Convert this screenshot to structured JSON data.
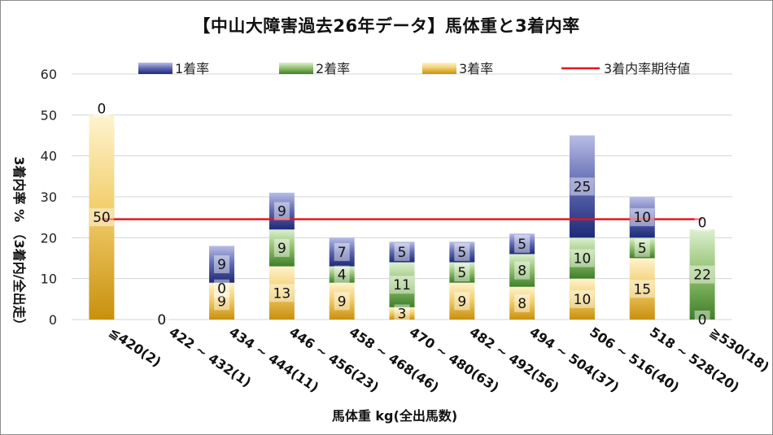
{
  "chart_data": {
    "type": "bar",
    "stacked": true,
    "title": "【中山大障害過去26年データ】馬体重と3着内率",
    "xlabel": "馬体重 kg(全出馬数)",
    "ylabel": "3着内率 %  （3着内/全出走）",
    "ylim": [
      0,
      60
    ],
    "yticks": [
      0,
      10,
      20,
      30,
      40,
      50,
      60
    ],
    "grid": true,
    "legend_position": "top",
    "categories": [
      "≦420(2)",
      "422 ~ 432(1)",
      "434 ~ 444(11)",
      "446 ~ 456(23)",
      "458 ~ 468(46)",
      "470 ~ 480(63)",
      "482 ~ 492(56)",
      "494 ~ 504(37)",
      "506 ~ 516(40)",
      "518 ~ 528(20)",
      "≧530(18)"
    ],
    "series": [
      {
        "name": "3着率",
        "color": "#d9a520",
        "values": [
          50,
          0,
          9,
          13,
          9,
          3,
          9,
          8,
          10,
          15,
          0
        ]
      },
      {
        "name": "2着率",
        "color": "#5b9a3c",
        "values": [
          0,
          0,
          0,
          9,
          4,
          11,
          5,
          8,
          10,
          5,
          22
        ]
      },
      {
        "name": "1着率",
        "color": "#2e3a8c",
        "values": [
          0,
          0,
          9,
          9,
          7,
          5,
          5,
          5,
          25,
          10,
          0
        ]
      }
    ],
    "data_labels": [
      [
        "50",
        "",
        "9",
        "13",
        "9",
        "3",
        "9",
        "8",
        "10",
        "15",
        "0"
      ],
      [
        "",
        "",
        "0",
        "9",
        "4",
        "11",
        "5",
        "8",
        "10",
        "5",
        "22"
      ],
      [
        "0",
        "0",
        "9",
        "9",
        "7",
        "5",
        "5",
        "5",
        "25",
        "10",
        "0"
      ]
    ],
    "reference_line": {
      "name": "3着内率期待値",
      "value": 24.5,
      "color": "#e8141e"
    },
    "legend": [
      "1着率",
      "2着率",
      "3着率",
      "3着内率期待値"
    ]
  }
}
